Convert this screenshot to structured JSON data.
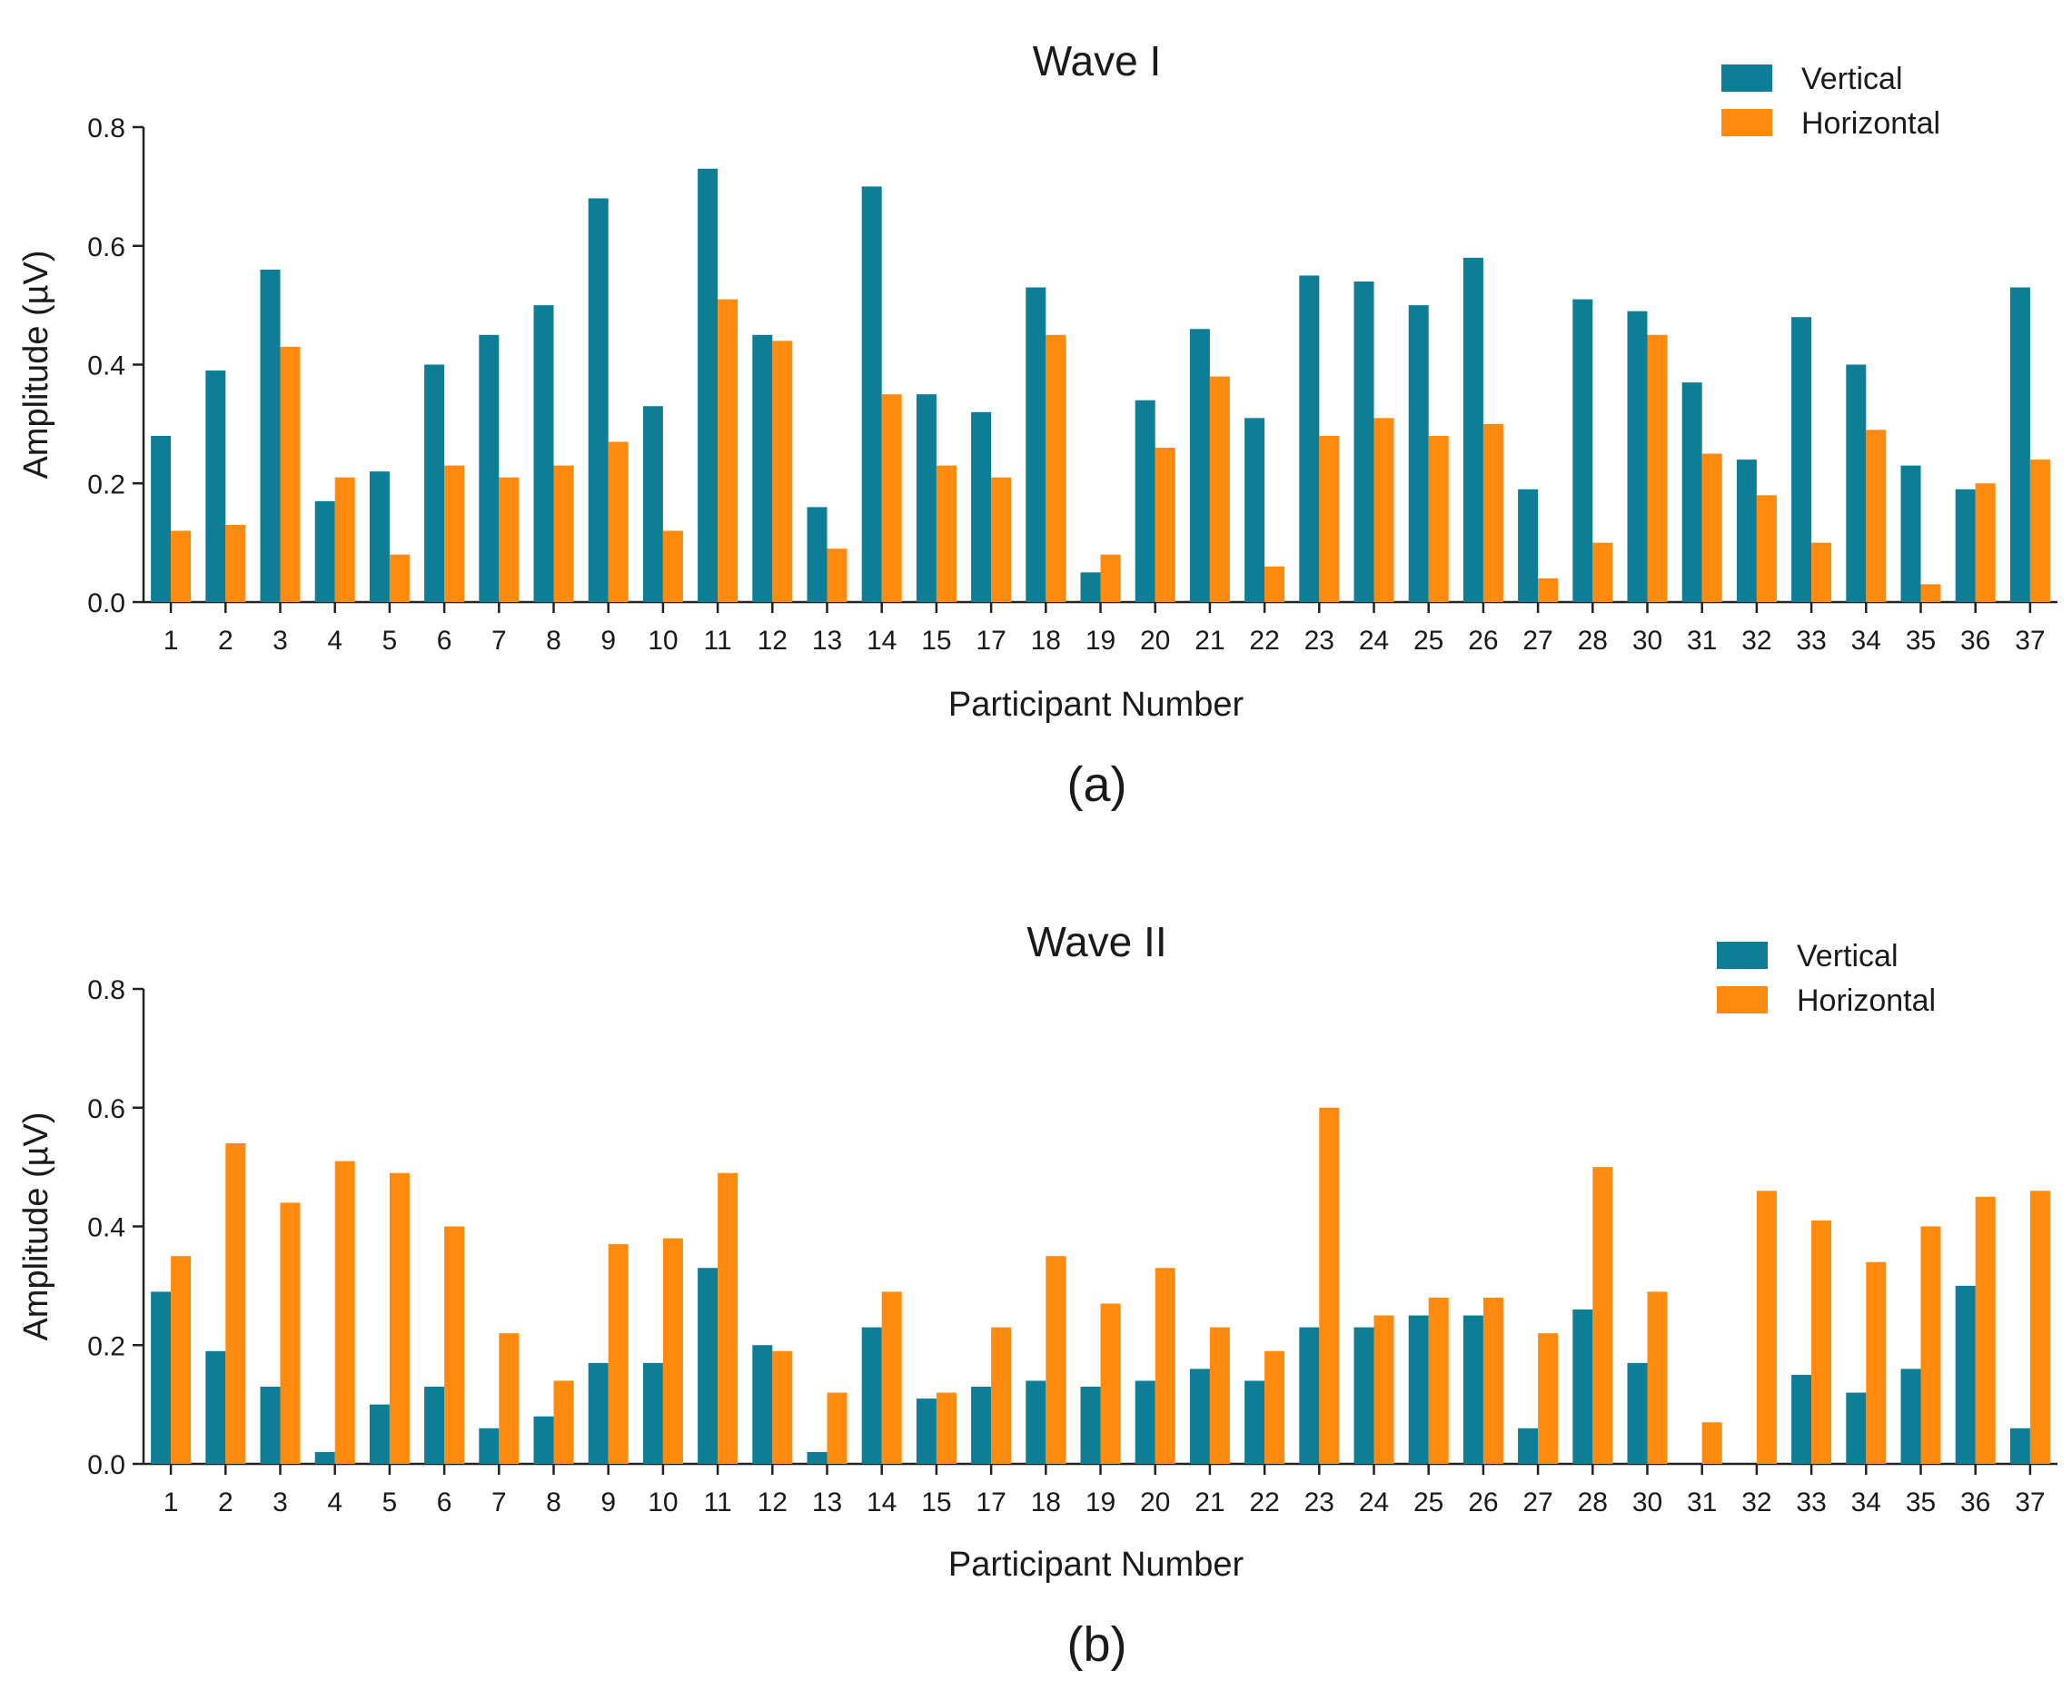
{
  "colors": {
    "vertical": "#0d7e95",
    "horizontal": "#ff8a0e"
  },
  "chart_data": [
    {
      "type": "bar",
      "title": "Wave I",
      "caption": "(a)",
      "xlabel": "Participant  Number",
      "ylabel": "Amplitude (µV)",
      "ylim": [
        0,
        0.8
      ],
      "yticks": [
        "0.0",
        "0.2",
        "0.4",
        "0.6",
        "0.8"
      ],
      "legend_position": "top-right",
      "categories": [
        "1",
        "2",
        "3",
        "4",
        "5",
        "6",
        "7",
        "8",
        "9",
        "10",
        "11",
        "12",
        "13",
        "14",
        "15",
        "17",
        "18",
        "19",
        "20",
        "21",
        "22",
        "23",
        "24",
        "25",
        "26",
        "27",
        "28",
        "30",
        "31",
        "32",
        "33",
        "34",
        "35",
        "36",
        "37"
      ],
      "series": [
        {
          "name": "Vertical",
          "color": "#0d7e95",
          "values": [
            0.28,
            0.39,
            0.56,
            0.17,
            0.22,
            0.4,
            0.45,
            0.5,
            0.68,
            0.33,
            0.73,
            0.45,
            0.16,
            0.7,
            0.35,
            0.32,
            0.53,
            0.05,
            0.34,
            0.46,
            0.31,
            0.55,
            0.54,
            0.5,
            0.58,
            0.19,
            0.51,
            0.49,
            0.37,
            0.24,
            0.48,
            0.4,
            0.23,
            0.19,
            0.53
          ]
        },
        {
          "name": "Horizontal",
          "color": "#ff8a0e",
          "values": [
            0.12,
            0.13,
            0.43,
            0.21,
            0.08,
            0.23,
            0.21,
            0.23,
            0.27,
            0.12,
            0.51,
            0.44,
            0.09,
            0.35,
            0.23,
            0.21,
            0.45,
            0.08,
            0.26,
            0.38,
            0.06,
            0.28,
            0.31,
            0.28,
            0.3,
            0.04,
            0.1,
            0.45,
            0.25,
            0.18,
            0.1,
            0.29,
            0.03,
            0.2,
            0.24
          ]
        }
      ]
    },
    {
      "type": "bar",
      "title": "Wave II",
      "caption": "(b)",
      "xlabel": "Participant Number",
      "ylabel": "Amplitude (µV)",
      "ylim": [
        0,
        0.8
      ],
      "yticks": [
        "0.0",
        "0.2",
        "0.4",
        "0.6",
        "0.8"
      ],
      "legend_position": "top-right",
      "categories": [
        "1",
        "2",
        "3",
        "4",
        "5",
        "6",
        "7",
        "8",
        "9",
        "10",
        "11",
        "12",
        "13",
        "14",
        "15",
        "17",
        "18",
        "19",
        "20",
        "21",
        "22",
        "23",
        "24",
        "25",
        "26",
        "27",
        "28",
        "30",
        "31",
        "32",
        "33",
        "34",
        "35",
        "36",
        "37"
      ],
      "series": [
        {
          "name": "Vertical",
          "color": "#0d7e95",
          "values": [
            0.29,
            0.19,
            0.13,
            0.02,
            0.1,
            0.13,
            0.06,
            0.08,
            0.17,
            0.17,
            0.33,
            0.2,
            0.02,
            0.23,
            0.11,
            0.13,
            0.14,
            0.13,
            0.14,
            0.16,
            0.14,
            0.23,
            0.23,
            0.25,
            0.25,
            0.06,
            0.26,
            0.17,
            0.0,
            0.0,
            0.15,
            0.12,
            0.16,
            0.3,
            0.06
          ]
        },
        {
          "name": "Horizontal",
          "color": "#ff8a0e",
          "values": [
            0.35,
            0.54,
            0.44,
            0.51,
            0.49,
            0.4,
            0.22,
            0.14,
            0.37,
            0.38,
            0.49,
            0.19,
            0.12,
            0.29,
            0.12,
            0.23,
            0.35,
            0.27,
            0.33,
            0.23,
            0.19,
            0.6,
            0.25,
            0.28,
            0.28,
            0.22,
            0.5,
            0.29,
            0.07,
            0.46,
            0.41,
            0.34,
            0.4,
            0.45,
            0.46
          ]
        }
      ]
    }
  ]
}
